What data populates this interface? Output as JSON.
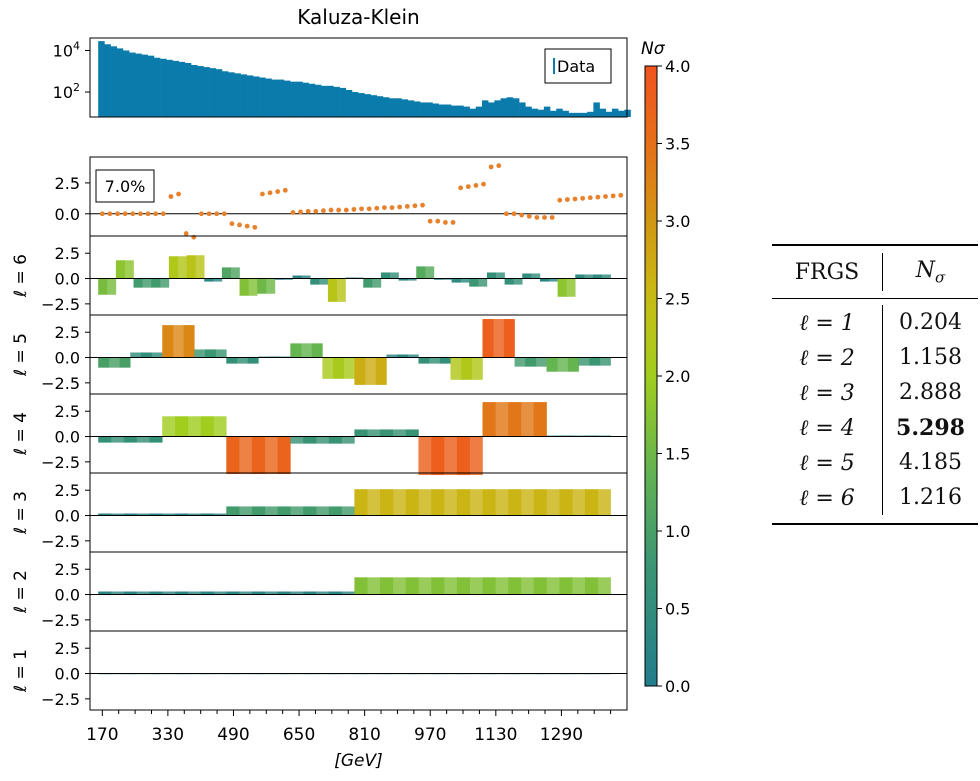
{
  "chart_data": {
    "type": "bar",
    "title": "Kaluza-Klein",
    "xlabel": "[GeV]",
    "x_ticks": [
      170,
      330,
      490,
      650,
      810,
      970,
      1130,
      1290
    ],
    "xlim": [
      140,
      1450
    ],
    "bin_width": 20,
    "data_panel": {
      "legend": "Data",
      "yscale": "log",
      "ytick_base": "10",
      "ytick_exponents": [
        "4",
        "2"
      ],
      "ylim_log10": [
        0.8,
        4.6
      ],
      "log10_counts": [
        4.45,
        4.3,
        4.2,
        4.1,
        4.0,
        3.9,
        3.85,
        3.8,
        3.75,
        3.65,
        3.6,
        3.55,
        3.5,
        3.45,
        3.4,
        3.3,
        3.25,
        3.2,
        3.15,
        3.1,
        3.0,
        2.95,
        2.9,
        2.85,
        2.8,
        2.75,
        2.7,
        2.65,
        2.6,
        2.6,
        2.55,
        2.5,
        2.5,
        2.45,
        2.4,
        2.35,
        2.3,
        2.3,
        2.25,
        2.2,
        2.1,
        2.0,
        1.95,
        1.9,
        1.85,
        1.8,
        1.75,
        1.7,
        1.7,
        1.65,
        1.6,
        1.55,
        1.5,
        1.5,
        1.45,
        1.4,
        1.4,
        1.35,
        1.35,
        1.3,
        1.2,
        1.3,
        1.6,
        1.5,
        1.6,
        1.7,
        1.75,
        1.7,
        1.5,
        1.3,
        1.2,
        1.15,
        1.3,
        1.1,
        1.2,
        1.1,
        1.0,
        1.0,
        1.0,
        1.05,
        1.5,
        1.2,
        1.05,
        1.2,
        1.1,
        1.15
      ]
    },
    "ratio_panel": {
      "annotation": "7.0%",
      "yticks": [
        "2.5",
        "0.0"
      ],
      "ylim": [
        -1.8,
        4.6
      ],
      "points": [
        0,
        0,
        0,
        0,
        0,
        0,
        0,
        0,
        0,
        1.4,
        1.6,
        -1.6,
        -1.9,
        0,
        0,
        0,
        0,
        -0.8,
        -0.9,
        -1.0,
        -1.1,
        1.6,
        1.7,
        1.8,
        1.9,
        0.1,
        0.15,
        0.2,
        0.2,
        0.25,
        0.3,
        0.3,
        0.3,
        0.35,
        0.4,
        0.4,
        0.45,
        0.5,
        0.5,
        0.55,
        0.6,
        0.65,
        0.7,
        -0.6,
        -0.6,
        -0.7,
        -0.7,
        2.1,
        2.2,
        2.3,
        2.4,
        3.8,
        3.9,
        0,
        0,
        -0.1,
        -0.2,
        -0.3,
        -0.3,
        -0.3,
        1.1,
        1.15,
        1.2,
        1.25,
        1.3,
        1.35,
        1.4,
        1.45,
        1.5
      ]
    },
    "colorbar": {
      "label": "Nσ",
      "min": 0.0,
      "max": 4.0,
      "ticks": [
        "4.0",
        "3.5",
        "3.0",
        "2.5",
        "2.0",
        "1.5",
        "1.0",
        "0.5",
        "0.0"
      ]
    },
    "frgs_panels": [
      {
        "label_prefix": "ℓ = ",
        "label_num": "6",
        "yticks": [
          "2.5",
          "0.0",
          "−2.5"
        ],
        "values": [
          -1.6,
          -1.6,
          1.8,
          1.8,
          -0.9,
          -0.9,
          -0.9,
          -0.9,
          2.2,
          2.2,
          2.3,
          2.3,
          -0.3,
          -0.3,
          1.1,
          1.1,
          -1.7,
          -1.7,
          -1.5,
          -1.5,
          -0.1,
          -0.1,
          0.3,
          0.3,
          -0.6,
          -0.6,
          -2.3,
          -2.3,
          0.1,
          0.1,
          -0.9,
          -0.9,
          0.6,
          0.6,
          -0.2,
          -0.2,
          1.2,
          1.2,
          -0.1,
          -0.1,
          -0.4,
          -0.4,
          -0.8,
          -0.8,
          0.6,
          0.6,
          -0.6,
          -0.6,
          0.5,
          0.5,
          -0.3,
          -0.3,
          -1.8,
          -1.8,
          0.4,
          0.4,
          0.4,
          0.4
        ]
      },
      {
        "label_prefix": "ℓ = ",
        "label_num": "5",
        "yticks": [
          "2.5",
          "0.0",
          "−2.5"
        ],
        "values": [
          -1.0,
          -1.0,
          -1.0,
          0.5,
          0.5,
          0.5,
          3.2,
          3.2,
          3.2,
          0.8,
          0.8,
          0.8,
          -0.6,
          -0.6,
          -0.6,
          0.1,
          0.1,
          0.1,
          1.4,
          1.4,
          1.4,
          -2.1,
          -2.1,
          -2.1,
          -2.7,
          -2.7,
          -2.7,
          0.3,
          0.3,
          0.3,
          -0.6,
          -0.6,
          -0.6,
          -2.2,
          -2.2,
          -2.2,
          3.8,
          3.8,
          3.8,
          -0.9,
          -0.9,
          -0.9,
          -1.4,
          -1.4,
          -1.4,
          -0.8,
          -0.8,
          -0.8
        ]
      },
      {
        "label_prefix": "ℓ = ",
        "label_num": "4",
        "yticks": [
          "2.5",
          "0.0",
          "−2.5"
        ],
        "values": [
          -0.6,
          -0.6,
          -0.6,
          -0.6,
          -0.6,
          2.0,
          2.0,
          2.0,
          2.0,
          2.0,
          -3.7,
          -3.7,
          -3.7,
          -3.7,
          -3.7,
          -0.7,
          -0.7,
          -0.7,
          -0.7,
          -0.7,
          0.7,
          0.7,
          0.7,
          0.7,
          0.7,
          -3.8,
          -3.8,
          -3.8,
          -3.8,
          -3.8,
          3.4,
          3.4,
          3.4,
          3.4,
          3.4,
          0.1,
          0.1,
          0.1,
          0.1,
          0.1
        ]
      },
      {
        "label_prefix": "ℓ = ",
        "label_num": "3",
        "yticks": [
          "2.5",
          "0.0",
          "−2.5"
        ],
        "values": [
          0.2,
          0.2,
          0.2,
          0.2,
          0.2,
          0.2,
          0.2,
          0.2,
          0.2,
          0.2,
          0.9,
          0.9,
          0.9,
          0.9,
          0.9,
          0.9,
          0.9,
          0.9,
          0.9,
          0.9,
          2.6,
          2.6,
          2.6,
          2.6,
          2.6,
          2.6,
          2.6,
          2.6,
          2.6,
          2.6,
          2.6,
          2.6,
          2.6,
          2.6,
          2.6,
          2.6,
          2.6,
          2.6,
          2.6,
          2.6
        ]
      },
      {
        "label_prefix": "ℓ = ",
        "label_num": "2",
        "yticks": [
          "2.5",
          "0.0",
          "−2.5"
        ],
        "values": [
          0.3,
          0.3,
          0.3,
          0.3,
          0.3,
          0.3,
          0.3,
          0.3,
          0.3,
          0.3,
          0.3,
          0.3,
          0.3,
          0.3,
          0.3,
          0.3,
          0.3,
          0.3,
          0.3,
          0.3,
          1.7,
          1.7,
          1.7,
          1.7,
          1.7,
          1.7,
          1.7,
          1.7,
          1.7,
          1.7,
          1.7,
          1.7,
          1.7,
          1.7,
          1.7,
          1.7,
          1.7,
          1.7,
          1.7,
          1.7
        ]
      },
      {
        "label_prefix": "ℓ = ",
        "label_num": "1",
        "yticks": [
          "2.5",
          "0.0",
          "−2.5"
        ],
        "values": [
          0.05,
          0.05,
          0.05,
          0.05,
          0.05,
          0.05,
          0.05,
          0.05,
          0.05,
          0.05,
          0.05,
          0.05,
          0.05,
          0.05,
          0.05,
          0.05,
          0.05,
          0.05,
          0.05,
          0.05,
          0.05,
          0.05,
          0.05,
          0.05,
          0.05,
          0.05,
          0.05,
          0.05,
          0.05,
          0.05,
          0.05,
          0.05,
          0.05,
          0.05,
          0.05,
          0.05,
          0.05,
          0.05,
          0.05,
          0.05
        ]
      }
    ],
    "table": {
      "header_left": "FRGS",
      "header_right_main": "N",
      "header_right_sub": "σ",
      "rows": [
        {
          "label": "ℓ = 1",
          "value": "0.204",
          "bold": false
        },
        {
          "label": "ℓ = 2",
          "value": "1.158",
          "bold": false
        },
        {
          "label": "ℓ = 3",
          "value": "2.888",
          "bold": false
        },
        {
          "label": "ℓ = 4",
          "value": "5.298",
          "bold": true
        },
        {
          "label": "ℓ = 5",
          "value": "4.185",
          "bold": false
        },
        {
          "label": "ℓ = 6",
          "value": "1.216",
          "bold": false
        }
      ]
    },
    "colors": {
      "data_bars": "#0a7bab",
      "ratio_points": "#e8812b"
    }
  }
}
